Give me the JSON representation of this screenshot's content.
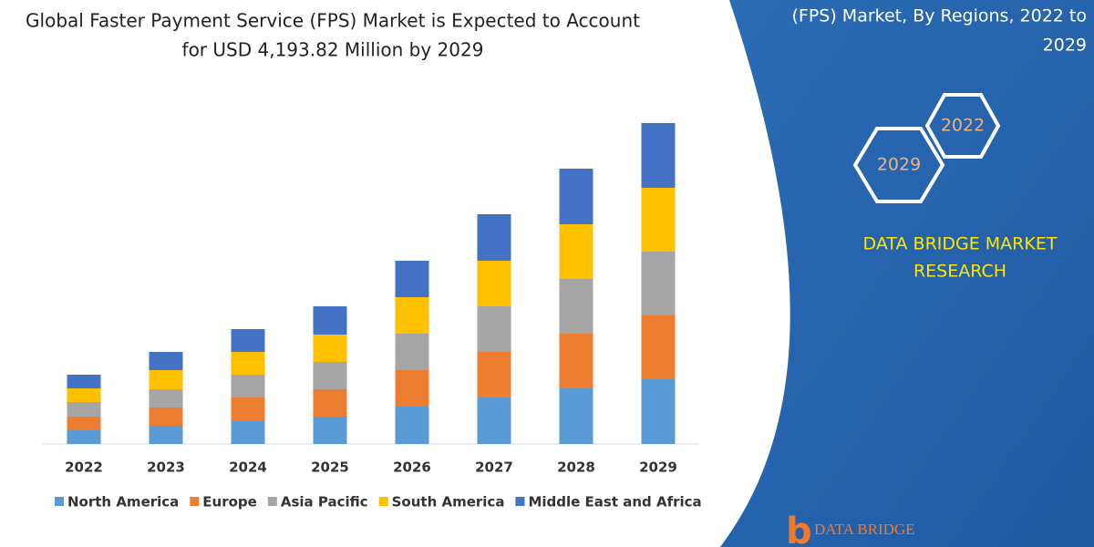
{
  "chart_data": {
    "type": "bar",
    "stacked": true,
    "title_lines": [
      "Global Faster Payment Service (FPS) Market is Expected to Account",
      "for USD 4,193.82 Million by 2029"
    ],
    "categories": [
      "2022",
      "2023",
      "2024",
      "2025",
      "2026",
      "2027",
      "2028",
      "2029"
    ],
    "series": [
      {
        "name": "North America",
        "color": "#5b9bd5",
        "values": [
          15,
          20,
          25,
          30,
          41,
          51,
          61,
          71
        ]
      },
      {
        "name": "Europe",
        "color": "#ed7d31",
        "values": [
          15,
          20,
          26,
          30,
          40,
          50,
          60,
          70
        ]
      },
      {
        "name": "Asia Pacific",
        "color": "#a5a5a5",
        "values": [
          16,
          20,
          25,
          30,
          40,
          50,
          60,
          70
        ]
      },
      {
        "name": "South America",
        "color": "#ffc000",
        "values": [
          15,
          21,
          25,
          30,
          40,
          50,
          60,
          70
        ]
      },
      {
        "name": "Middle East and Africa",
        "color": "#4472c4",
        "values": [
          15,
          20,
          25,
          31,
          40,
          51,
          61,
          71
        ]
      }
    ],
    "ylim": [
      0,
      360
    ],
    "grid": false,
    "legend": "bottom"
  },
  "panel": {
    "heading_lines": [
      "(FPS) Market, By Regions, 2022 to",
      "2029"
    ],
    "hexagons": [
      "2022",
      "2029"
    ],
    "brand_lines": [
      "DATA BRIDGE MARKET",
      "RESEARCH"
    ],
    "logo": "DATA BRIDGE"
  }
}
